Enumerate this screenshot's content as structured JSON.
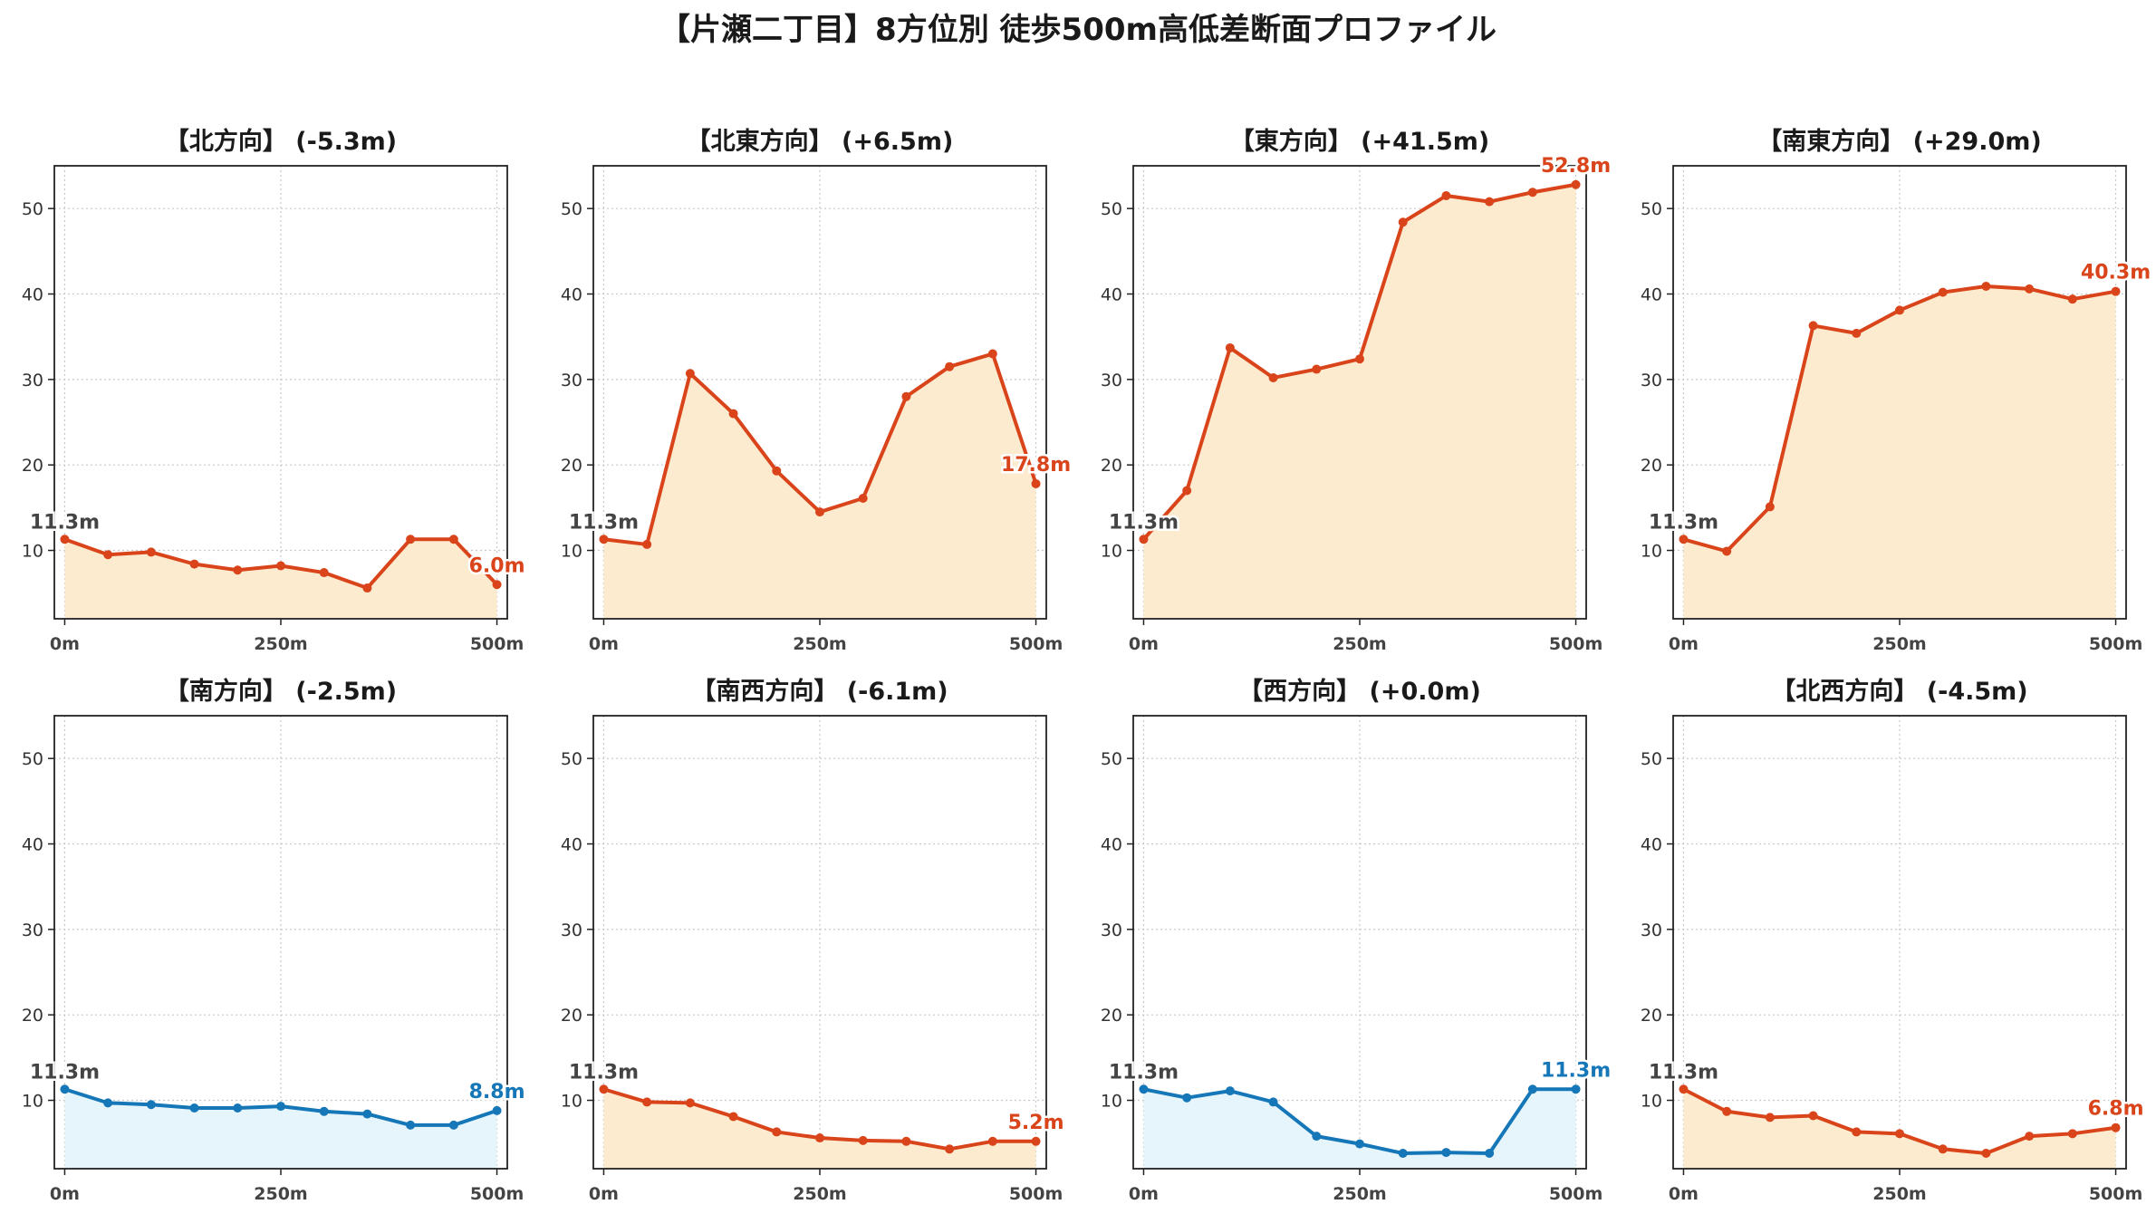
{
  "page": {
    "title": "【片瀬二丁目】8方位別 徒歩500m高低差断面プロファイル"
  },
  "colors": {
    "up_line": "#d9441a",
    "up_fill": "#fdebcf",
    "down_line": "#1577b8",
    "down_fill": "#e6f5fc",
    "grid": "#c8c8c8",
    "axis": "#222222"
  },
  "chart_data": [
    {
      "type": "line",
      "name": "北",
      "title": "【北方向】 (-5.3m)",
      "x": [
        0,
        50,
        100,
        150,
        200,
        250,
        300,
        350,
        400,
        450,
        500
      ],
      "y": [
        11.3,
        9.5,
        9.8,
        8.4,
        7.7,
        8.2,
        7.4,
        5.6,
        11.3,
        11.3,
        6.0
      ],
      "start_label": "11.3m",
      "end_label": "6.0m",
      "trend": "up",
      "xlim": [
        -12,
        512
      ],
      "ylim": [
        2,
        55
      ],
      "xticks": [
        "0m",
        "250m",
        "500m"
      ],
      "yticks": [
        10,
        20,
        30,
        40,
        50
      ],
      "grid": true
    },
    {
      "type": "line",
      "name": "北東",
      "title": "【北東方向】 (+6.5m)",
      "x": [
        0,
        50,
        100,
        150,
        200,
        250,
        300,
        350,
        400,
        450,
        500
      ],
      "y": [
        11.3,
        10.7,
        30.7,
        26.0,
        19.3,
        14.5,
        16.1,
        28.0,
        31.5,
        33.0,
        17.8
      ],
      "start_label": "11.3m",
      "end_label": "17.8m",
      "trend": "up",
      "xlim": [
        -12,
        512
      ],
      "ylim": [
        2,
        55
      ],
      "xticks": [
        "0m",
        "250m",
        "500m"
      ],
      "yticks": [
        10,
        20,
        30,
        40,
        50
      ],
      "grid": true
    },
    {
      "type": "line",
      "name": "東",
      "title": "【東方向】 (+41.5m)",
      "x": [
        0,
        50,
        100,
        150,
        200,
        250,
        300,
        350,
        400,
        450,
        500
      ],
      "y": [
        11.3,
        17.0,
        33.7,
        30.2,
        31.2,
        32.4,
        48.4,
        51.5,
        50.8,
        51.9,
        52.8
      ],
      "start_label": "11.3m",
      "end_label": "52.8m",
      "trend": "up",
      "xlim": [
        -12,
        512
      ],
      "ylim": [
        2,
        55
      ],
      "xticks": [
        "0m",
        "250m",
        "500m"
      ],
      "yticks": [
        10,
        20,
        30,
        40,
        50
      ],
      "grid": true
    },
    {
      "type": "line",
      "name": "南東",
      "title": "【南東方向】 (+29.0m)",
      "x": [
        0,
        50,
        100,
        150,
        200,
        250,
        300,
        350,
        400,
        450,
        500
      ],
      "y": [
        11.3,
        9.9,
        15.1,
        36.3,
        35.4,
        38.1,
        40.2,
        40.9,
        40.6,
        39.4,
        40.3
      ],
      "start_label": "11.3m",
      "end_label": "40.3m",
      "trend": "up",
      "xlim": [
        -12,
        512
      ],
      "ylim": [
        2,
        55
      ],
      "xticks": [
        "0m",
        "250m",
        "500m"
      ],
      "yticks": [
        10,
        20,
        30,
        40,
        50
      ],
      "grid": true
    },
    {
      "type": "line",
      "name": "南",
      "title": "【南方向】 (-2.5m)",
      "x": [
        0,
        50,
        100,
        150,
        200,
        250,
        300,
        350,
        400,
        450,
        500
      ],
      "y": [
        11.3,
        9.7,
        9.5,
        9.1,
        9.1,
        9.3,
        8.7,
        8.4,
        7.1,
        7.1,
        8.8
      ],
      "start_label": "11.3m",
      "end_label": "8.8m",
      "trend": "down",
      "xlim": [
        -12,
        512
      ],
      "ylim": [
        2,
        55
      ],
      "xticks": [
        "0m",
        "250m",
        "500m"
      ],
      "yticks": [
        10,
        20,
        30,
        40,
        50
      ],
      "grid": true
    },
    {
      "type": "line",
      "name": "南西",
      "title": "【南西方向】 (-6.1m)",
      "x": [
        0,
        50,
        100,
        150,
        200,
        250,
        300,
        350,
        400,
        450,
        500
      ],
      "y": [
        11.3,
        9.8,
        9.7,
        8.1,
        6.3,
        5.6,
        5.3,
        5.2,
        4.3,
        5.2,
        5.2
      ],
      "start_label": "11.3m",
      "end_label": "5.2m",
      "trend": "up",
      "xlim": [
        -12,
        512
      ],
      "ylim": [
        2,
        55
      ],
      "xticks": [
        "0m",
        "250m",
        "500m"
      ],
      "yticks": [
        10,
        20,
        30,
        40,
        50
      ],
      "grid": true
    },
    {
      "type": "line",
      "name": "西",
      "title": "【西方向】 (+0.0m)",
      "x": [
        0,
        50,
        100,
        150,
        200,
        250,
        300,
        350,
        400,
        450,
        500
      ],
      "y": [
        11.3,
        10.3,
        11.1,
        9.8,
        5.8,
        4.9,
        3.8,
        3.9,
        3.8,
        11.3,
        11.3
      ],
      "start_label": "11.3m",
      "end_label": "11.3m",
      "trend": "down",
      "xlim": [
        -12,
        512
      ],
      "ylim": [
        2,
        55
      ],
      "xticks": [
        "0m",
        "250m",
        "500m"
      ],
      "yticks": [
        10,
        20,
        30,
        40,
        50
      ],
      "grid": true
    },
    {
      "type": "line",
      "name": "北西",
      "title": "【北西方向】 (-4.5m)",
      "x": [
        0,
        50,
        100,
        150,
        200,
        250,
        300,
        350,
        400,
        450,
        500
      ],
      "y": [
        11.3,
        8.7,
        8.0,
        8.2,
        6.3,
        6.1,
        4.3,
        3.8,
        5.8,
        6.1,
        6.8
      ],
      "start_label": "11.3m",
      "end_label": "6.8m",
      "trend": "up",
      "xlim": [
        -12,
        512
      ],
      "ylim": [
        2,
        55
      ],
      "xticks": [
        "0m",
        "250m",
        "500m"
      ],
      "yticks": [
        10,
        20,
        30,
        40,
        50
      ],
      "grid": true
    }
  ]
}
